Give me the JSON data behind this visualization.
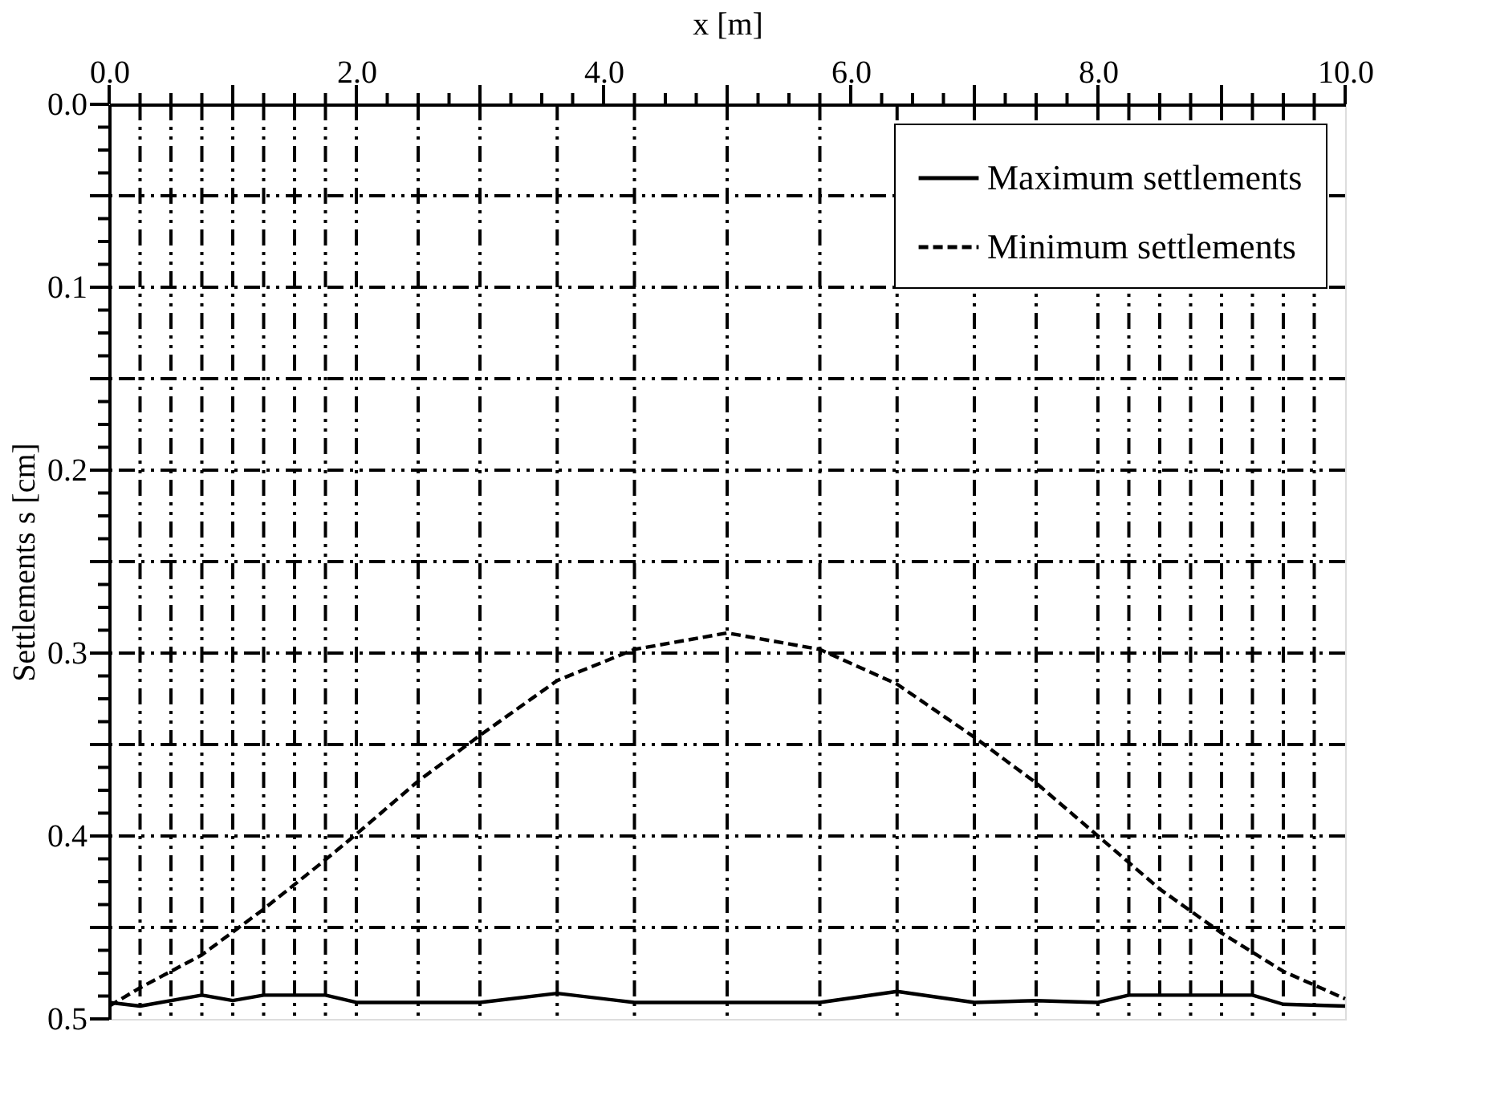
{
  "chart_data": {
    "type": "line",
    "xlabel": "x [m]",
    "ylabel": "Settlements s [cm]",
    "xlim": [
      0,
      10
    ],
    "ylim": [
      0.5,
      0
    ],
    "xticks": [
      {
        "value": 0,
        "label": "0.0"
      },
      {
        "value": 0.25,
        "label": null
      },
      {
        "value": 0.5,
        "label": null
      },
      {
        "value": 0.75,
        "label": null
      },
      {
        "value": 1,
        "label": null
      },
      {
        "value": 1.25,
        "label": null
      },
      {
        "value": 1.5,
        "label": null
      },
      {
        "value": 1.75,
        "label": null
      },
      {
        "value": 2,
        "label": "2.0"
      },
      {
        "value": 2.25,
        "label": null
      },
      {
        "value": 2.5,
        "label": null
      },
      {
        "value": 2.75,
        "label": null
      },
      {
        "value": 3,
        "label": null
      },
      {
        "value": 3.25,
        "label": null
      },
      {
        "value": 3.5,
        "label": null
      },
      {
        "value": 3.75,
        "label": null
      },
      {
        "value": 4,
        "label": "4.0"
      },
      {
        "value": 4.25,
        "label": null
      },
      {
        "value": 4.5,
        "label": null
      },
      {
        "value": 4.75,
        "label": null
      },
      {
        "value": 5,
        "label": null
      },
      {
        "value": 5.25,
        "label": null
      },
      {
        "value": 5.5,
        "label": null
      },
      {
        "value": 5.75,
        "label": null
      },
      {
        "value": 6,
        "label": "6.0"
      },
      {
        "value": 6.25,
        "label": null
      },
      {
        "value": 6.5,
        "label": null
      },
      {
        "value": 6.75,
        "label": null
      },
      {
        "value": 7,
        "label": null
      },
      {
        "value": 7.25,
        "label": null
      },
      {
        "value": 7.5,
        "label": null
      },
      {
        "value": 7.75,
        "label": null
      },
      {
        "value": 8,
        "label": "8.0"
      },
      {
        "value": 8.25,
        "label": null
      },
      {
        "value": 8.5,
        "label": null
      },
      {
        "value": 8.75,
        "label": null
      },
      {
        "value": 9,
        "label": null
      },
      {
        "value": 9.25,
        "label": null
      },
      {
        "value": 9.5,
        "label": null
      },
      {
        "value": 9.75,
        "label": null
      },
      {
        "value": 10,
        "label": "10.0"
      }
    ],
    "yticks": [
      {
        "value": 0,
        "label": "0.0"
      },
      {
        "value": 0.0125,
        "label": null
      },
      {
        "value": 0.025,
        "label": null
      },
      {
        "value": 0.0375,
        "label": null
      },
      {
        "value": 0.05,
        "label": null
      },
      {
        "value": 0.0625,
        "label": null
      },
      {
        "value": 0.075,
        "label": null
      },
      {
        "value": 0.0875,
        "label": null
      },
      {
        "value": 0.1,
        "label": "0.1"
      },
      {
        "value": 0.1125,
        "label": null
      },
      {
        "value": 0.125,
        "label": null
      },
      {
        "value": 0.1375,
        "label": null
      },
      {
        "value": 0.15,
        "label": null
      },
      {
        "value": 0.1625,
        "label": null
      },
      {
        "value": 0.175,
        "label": null
      },
      {
        "value": 0.1875,
        "label": null
      },
      {
        "value": 0.2,
        "label": "0.2"
      },
      {
        "value": 0.2125,
        "label": null
      },
      {
        "value": 0.225,
        "label": null
      },
      {
        "value": 0.2375,
        "label": null
      },
      {
        "value": 0.25,
        "label": null
      },
      {
        "value": 0.2625,
        "label": null
      },
      {
        "value": 0.275,
        "label": null
      },
      {
        "value": 0.2875,
        "label": null
      },
      {
        "value": 0.3,
        "label": "0.3"
      },
      {
        "value": 0.3125,
        "label": null
      },
      {
        "value": 0.325,
        "label": null
      },
      {
        "value": 0.3375,
        "label": null
      },
      {
        "value": 0.35,
        "label": null
      },
      {
        "value": 0.3625,
        "label": null
      },
      {
        "value": 0.375,
        "label": null
      },
      {
        "value": 0.3875,
        "label": null
      },
      {
        "value": 0.4,
        "label": "0.4"
      },
      {
        "value": 0.4125,
        "label": null
      },
      {
        "value": 0.425,
        "label": null
      },
      {
        "value": 0.4375,
        "label": null
      },
      {
        "value": 0.45,
        "label": null
      },
      {
        "value": 0.4625,
        "label": null
      },
      {
        "value": 0.475,
        "label": null
      },
      {
        "value": 0.4875,
        "label": null
      },
      {
        "value": 0.5,
        "label": "0.5"
      }
    ],
    "legend": "top right",
    "series": [
      {
        "name": "Maximum settlements",
        "color": "#000000",
        "line_style": "solid",
        "x": [
          0,
          0.25,
          0.75,
          1,
          1.25,
          1.75,
          2,
          3,
          3.625,
          4.25,
          5,
          5.75,
          6.375,
          7,
          7.5,
          8,
          8.25,
          9.25,
          9.5,
          10
        ],
        "values": [
          0.491,
          0.493,
          0.487,
          0.49,
          0.487,
          0.487,
          0.491,
          0.491,
          0.486,
          0.491,
          0.491,
          0.491,
          0.485,
          0.491,
          0.49,
          0.491,
          0.487,
          0.487,
          0.492,
          0.493
        ]
      },
      {
        "name": "Minimum settlements",
        "color": "#000000",
        "line_style": "dashed",
        "x": [
          0,
          0.25,
          0.75,
          1.25,
          1.75,
          2,
          2.5,
          3,
          3.625,
          4.25,
          5,
          5.75,
          6.375,
          7,
          7.5,
          8,
          8.5,
          9,
          9.5,
          10
        ],
        "values": [
          0.493,
          0.483,
          0.465,
          0.44,
          0.413,
          0.399,
          0.37,
          0.345,
          0.315,
          0.298,
          0.289,
          0.298,
          0.317,
          0.346,
          0.371,
          0.4,
          0.429,
          0.453,
          0.474,
          0.489
        ]
      }
    ],
    "ref_lines": [
      {
        "axis": "y",
        "value": 0.05,
        "line_style": "dashed"
      },
      {
        "axis": "y",
        "value": 0.1,
        "line_style": "dashed"
      },
      {
        "axis": "y",
        "value": 0.15,
        "line_style": "dashed"
      },
      {
        "axis": "y",
        "value": 0.2,
        "line_style": "dashed"
      },
      {
        "axis": "y",
        "value": 0.25,
        "line_style": "dashed"
      },
      {
        "axis": "y",
        "value": 0.3,
        "line_style": "dashed"
      },
      {
        "axis": "y",
        "value": 0.35,
        "line_style": "dashed"
      },
      {
        "axis": "y",
        "value": 0.4,
        "line_style": "dashed"
      },
      {
        "axis": "y",
        "value": 0.45,
        "line_style": "dashed"
      },
      {
        "axis": "x",
        "value": 0.25,
        "line_style": "dashed"
      },
      {
        "axis": "x",
        "value": 0.5,
        "line_style": "dashed"
      },
      {
        "axis": "x",
        "value": 0.75,
        "line_style": "dashed"
      },
      {
        "axis": "x",
        "value": 1,
        "line_style": "dashed"
      },
      {
        "axis": "x",
        "value": 1.25,
        "line_style": "dashed"
      },
      {
        "axis": "x",
        "value": 1.5,
        "line_style": "dashed"
      },
      {
        "axis": "x",
        "value": 1.75,
        "line_style": "dashed"
      },
      {
        "axis": "x",
        "value": 2,
        "line_style": "dashed"
      },
      {
        "axis": "x",
        "value": 2.5,
        "line_style": "dashed"
      },
      {
        "axis": "x",
        "value": 3,
        "line_style": "dashed"
      },
      {
        "axis": "x",
        "value": 3.625,
        "line_style": "dashed"
      },
      {
        "axis": "x",
        "value": 4.25,
        "line_style": "dashed"
      },
      {
        "axis": "x",
        "value": 5,
        "line_style": "dashed"
      },
      {
        "axis": "x",
        "value": 5.75,
        "line_style": "dashed"
      },
      {
        "axis": "x",
        "value": 6.375,
        "line_style": "dashed"
      },
      {
        "axis": "x",
        "value": 7,
        "line_style": "dashed"
      },
      {
        "axis": "x",
        "value": 7.5,
        "line_style": "dashed"
      },
      {
        "axis": "x",
        "value": 8,
        "line_style": "dashed"
      },
      {
        "axis": "x",
        "value": 8.25,
        "line_style": "dashed"
      },
      {
        "axis": "x",
        "value": 8.5,
        "line_style": "dashed"
      },
      {
        "axis": "x",
        "value": 8.75,
        "line_style": "dashed"
      },
      {
        "axis": "x",
        "value": 9,
        "line_style": "dashed"
      },
      {
        "axis": "x",
        "value": 9.25,
        "line_style": "dashed"
      },
      {
        "axis": "x",
        "value": 9.5,
        "line_style": "dashed"
      },
      {
        "axis": "x",
        "value": 9.75,
        "line_style": "dashed"
      }
    ]
  }
}
